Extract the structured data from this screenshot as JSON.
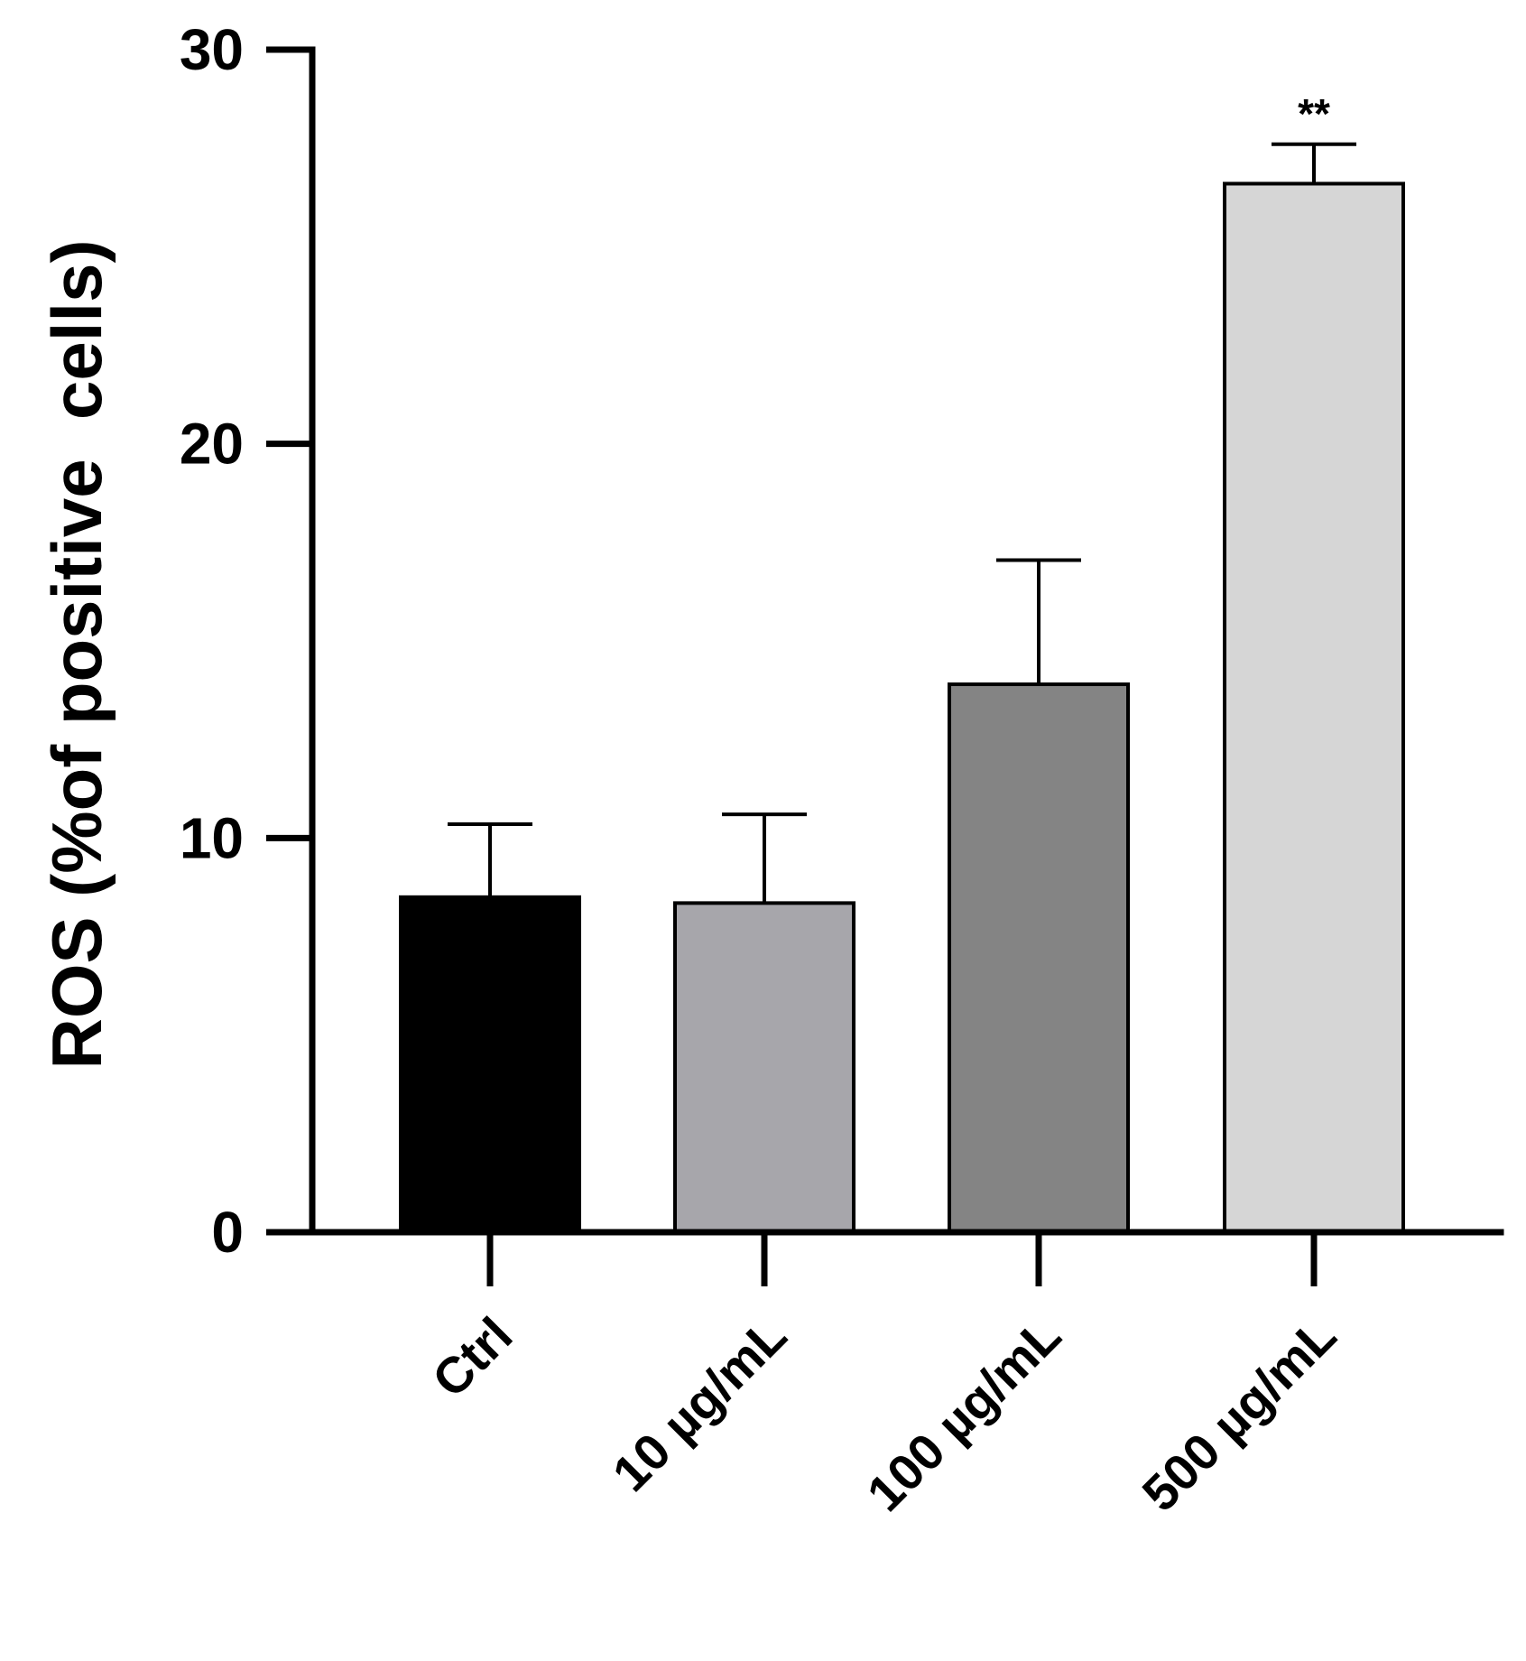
{
  "chart_data": {
    "type": "bar",
    "title": "",
    "xlabel": "",
    "ylabel": "ROS (%of positive  cells)",
    "ylim": [
      0,
      30
    ],
    "yticks": [
      0,
      10,
      20,
      30
    ],
    "grid": false,
    "legend": "none",
    "categories": [
      "Ctrl",
      "10 µg/mL",
      "100 µg/mL",
      "500 µg/mL"
    ],
    "series": [
      {
        "values": [
          8.5,
          8.35,
          13.9,
          26.6
        ],
        "error": [
          1.85,
          2.25,
          3.15,
          1.0
        ],
        "colors": [
          "#000000",
          "#a7a6ab",
          "#848484",
          "#d6d6d6"
        ]
      }
    ],
    "annotations": [
      {
        "category": "500 µg/mL",
        "text": "**"
      }
    ]
  }
}
